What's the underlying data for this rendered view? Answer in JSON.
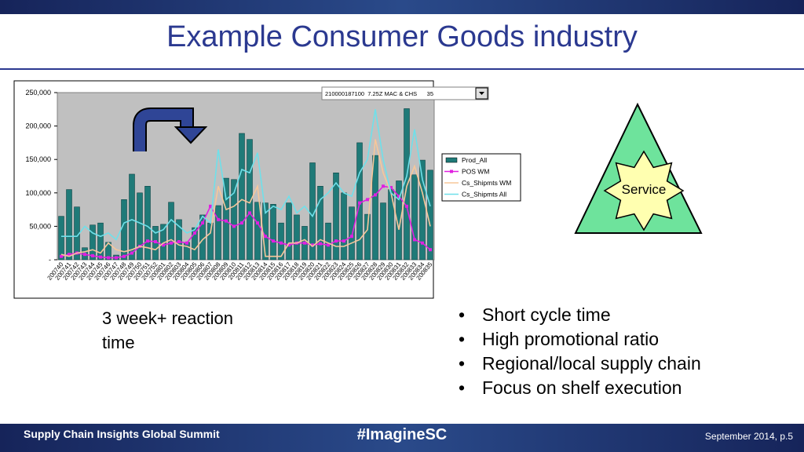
{
  "header": {
    "title": "Example Consumer Goods industry"
  },
  "chart_data": {
    "type": "bar",
    "dropdown": "210000187100  7.25Z MAC & CHS      35",
    "categories": [
      "200740",
      "200741",
      "200742",
      "200743",
      "200744",
      "200745",
      "200746",
      "200747",
      "200748",
      "200749",
      "200750",
      "200751",
      "200752",
      "200801",
      "200802",
      "200803",
      "200804",
      "200805",
      "200806",
      "200807",
      "200808",
      "200809",
      "200810",
      "200811",
      "200812",
      "200813",
      "200814",
      "200815",
      "200816",
      "200817",
      "200818",
      "200819",
      "200820",
      "200821",
      "200822",
      "200823",
      "200824",
      "200825",
      "200826",
      "200827",
      "200828",
      "200829",
      "200830",
      "200831",
      "200832",
      "200833",
      "200834",
      "200835"
    ],
    "series": [
      {
        "name": "Prod_All",
        "type": "bar",
        "color": "#1f7a78",
        "values": [
          65000,
          105000,
          79000,
          18000,
          52000,
          55000,
          26000,
          7000,
          90000,
          128000,
          100000,
          110000,
          50000,
          53000,
          86000,
          60000,
          26000,
          48000,
          67000,
          55000,
          81000,
          122000,
          120000,
          189000,
          180000,
          86000,
          85000,
          83000,
          55000,
          85000,
          67000,
          50000,
          145000,
          110000,
          55000,
          130000,
          100000,
          79000,
          175000,
          68000,
          156000,
          85000,
          105000,
          118000,
          226000,
          127000,
          149000,
          134000
        ]
      },
      {
        "name": "POS WM",
        "type": "line",
        "color": "#e020e0",
        "values": [
          5000,
          8000,
          10000,
          8000,
          6000,
          4000,
          3000,
          3000,
          5000,
          10000,
          20000,
          28000,
          27000,
          22000,
          25000,
          27000,
          25000,
          40000,
          55000,
          80000,
          60000,
          58000,
          50000,
          55000,
          70000,
          55000,
          35000,
          28000,
          25000,
          22000,
          25000,
          25000,
          22000,
          24000,
          22000,
          28000,
          28000,
          35000,
          85000,
          90000,
          97000,
          110000,
          108000,
          95000,
          80000,
          30000,
          25000,
          15000
        ]
      },
      {
        "name": "Cs_Shipmts WM",
        "type": "line",
        "color": "#f7c79a",
        "values": [
          8000,
          5000,
          10000,
          12000,
          15000,
          10000,
          25000,
          15000,
          12000,
          15000,
          20000,
          18000,
          15000,
          25000,
          30000,
          22000,
          20000,
          15000,
          30000,
          40000,
          110000,
          75000,
          80000,
          90000,
          85000,
          110000,
          5000,
          5000,
          5000,
          25000,
          25000,
          30000,
          20000,
          30000,
          25000,
          20000,
          20000,
          25000,
          30000,
          45000,
          180000,
          130000,
          100000,
          45000,
          110000,
          140000,
          100000,
          50000
        ]
      },
      {
        "name": "Cs_Shipmts All",
        "type": "line",
        "color": "#6fe0ea",
        "values": [
          35000,
          35000,
          35000,
          50000,
          40000,
          35000,
          40000,
          30000,
          55000,
          60000,
          55000,
          50000,
          40000,
          45000,
          60000,
          50000,
          40000,
          45000,
          65000,
          55000,
          165000,
          90000,
          100000,
          135000,
          130000,
          160000,
          70000,
          80000,
          75000,
          95000,
          70000,
          80000,
          65000,
          90000,
          100000,
          115000,
          100000,
          95000,
          130000,
          150000,
          225000,
          150000,
          100000,
          90000,
          125000,
          195000,
          120000,
          80000
        ]
      }
    ],
    "ylim": [
      0,
      250000
    ],
    "yticks": [
      {
        "value": 0,
        "label": "-"
      },
      {
        "value": 50000,
        "label": "50,000"
      },
      {
        "value": 100000,
        "label": "100,000"
      },
      {
        "value": 150000,
        "label": "150,000"
      },
      {
        "value": 200000,
        "label": "200,000"
      },
      {
        "value": 250000,
        "label": "250,000"
      }
    ],
    "grid": false
  },
  "annotation": "3 week+ reaction time",
  "diagram": {
    "label": "Service"
  },
  "bullets": [
    "Short cycle time",
    "High promotional ratio",
    "Regional/local  supply chain",
    "Focus on shelf execution"
  ],
  "footer": {
    "left": "Supply Chain Insights Global Summit",
    "center": "#ImagineSC",
    "right": "September 2014, p.5"
  }
}
